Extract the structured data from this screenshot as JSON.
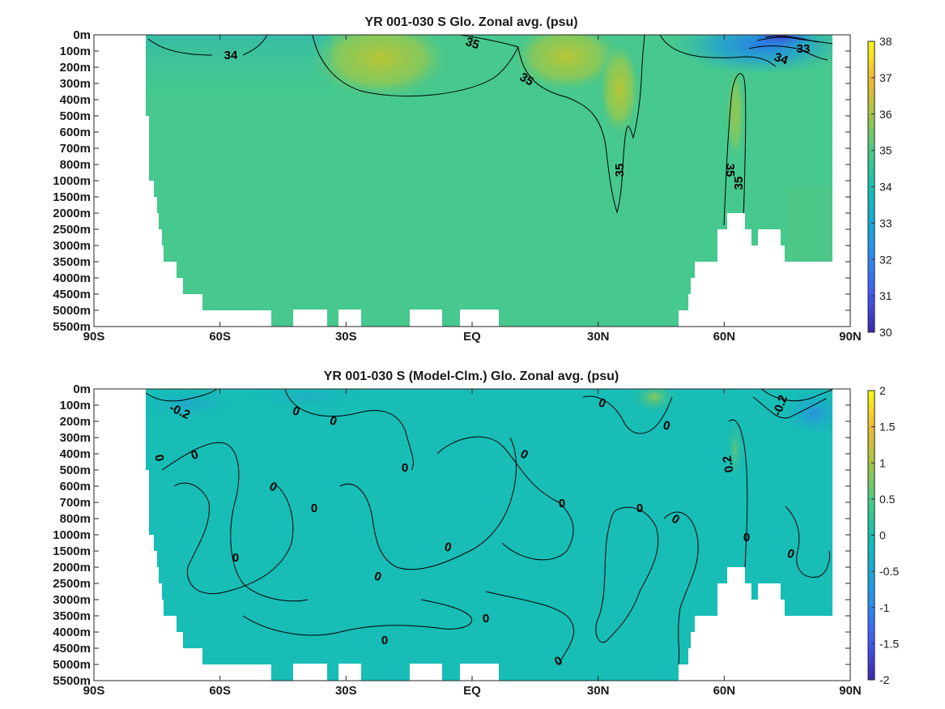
{
  "chart_data": [
    {
      "type": "heatmap",
      "title": "YR 001-030 S Glo. Zonal avg. (psu)",
      "x_ticks": [
        "90S",
        "60S",
        "30S",
        "EQ",
        "30N",
        "60N",
        "90N"
      ],
      "y_ticks": [
        "0m",
        "100m",
        "200m",
        "300m",
        "400m",
        "500m",
        "600m",
        "700m",
        "800m",
        "1000m",
        "1500m",
        "2000m",
        "2500m",
        "3000m",
        "3500m",
        "4000m",
        "4500m",
        "5000m",
        "5500m"
      ],
      "colorbar": {
        "ticks": [
          "30",
          "31",
          "32",
          "33",
          "34",
          "35",
          "36",
          "37",
          "38"
        ],
        "range": [
          30,
          38
        ]
      },
      "contour_labels": [
        "34",
        "35",
        "35",
        "33",
        "34",
        "35",
        "35",
        "35"
      ],
      "colormap": "parula"
    },
    {
      "type": "heatmap",
      "title": "YR 001-030 S (Model-Clm.) Glo. Zonal avg. (psu)",
      "x_ticks": [
        "90S",
        "60S",
        "30S",
        "EQ",
        "30N",
        "60N",
        "90N"
      ],
      "y_ticks": [
        "0m",
        "100m",
        "200m",
        "300m",
        "400m",
        "500m",
        "600m",
        "700m",
        "800m",
        "1000m",
        "1500m",
        "2000m",
        "2500m",
        "3000m",
        "3500m",
        "4000m",
        "4500m",
        "5000m",
        "5500m"
      ],
      "colorbar": {
        "ticks": [
          "2",
          "1.5",
          "1",
          "0.5",
          "0",
          "-0.5",
          "-1",
          "-1.5",
          "-2"
        ],
        "range": [
          -2,
          2
        ]
      },
      "contour_labels": [
        "-0.2",
        "0",
        "0",
        "0",
        "0",
        "0",
        "0",
        "0",
        "0",
        "0",
        "0",
        "0",
        "0",
        "0",
        "0",
        "0",
        "0.2",
        "-0.2",
        "0",
        "0",
        "0",
        "0",
        "0",
        "0"
      ],
      "colormap": "parula"
    }
  ]
}
